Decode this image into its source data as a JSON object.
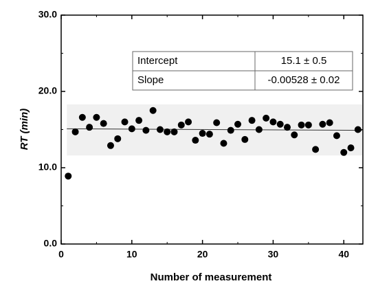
{
  "chart_data": {
    "type": "scatter",
    "xlabel": "Number of measurement",
    "ylabel": "RT (min)",
    "x": [
      1,
      2,
      3,
      4,
      5,
      6,
      7,
      8,
      9,
      10,
      11,
      12,
      13,
      14,
      15,
      16,
      17,
      18,
      19,
      20,
      21,
      22,
      23,
      24,
      25,
      26,
      27,
      28,
      29,
      30,
      31,
      32,
      33,
      34,
      35,
      36,
      37,
      38,
      39,
      40,
      41,
      42
    ],
    "series": [
      {
        "color": "#000000",
        "values": [
          8.9,
          14.7,
          16.6,
          15.3,
          16.6,
          15.8,
          12.9,
          13.8,
          16.0,
          15.1,
          16.2,
          14.9,
          17.5,
          15.0,
          14.7,
          14.7,
          15.6,
          16.0,
          13.6,
          14.5,
          14.4,
          15.9,
          13.2,
          14.9,
          15.7,
          13.7,
          16.2,
          15.0,
          16.5,
          16.0,
          15.7,
          15.3,
          14.3,
          15.6,
          15.6,
          12.4,
          15.7,
          15.9,
          14.2,
          12.0,
          12.6,
          15.0
        ]
      }
    ],
    "fit_line": {
      "x": [
        0.8,
        42.6
      ],
      "y": [
        15.1,
        14.9
      ],
      "color": "#333333"
    },
    "band": {
      "x": [
        0.8,
        42.6
      ],
      "lower": 11.6,
      "upper": 18.3,
      "color": "#f0f0f0"
    },
    "xlim": [
      0,
      42.7
    ],
    "ylim": [
      0,
      30
    ],
    "xticks": [
      0,
      10,
      20,
      30,
      40
    ],
    "yticks": [
      {
        "value": 0,
        "label": "0.0"
      },
      {
        "value": 10,
        "label": "10.0"
      },
      {
        "value": 20,
        "label": "20.0"
      },
      {
        "value": 30,
        "label": "30.0"
      }
    ],
    "xminor": [
      5,
      15,
      25,
      35
    ],
    "yminor": [
      5,
      15,
      25
    ],
    "table": {
      "rows": [
        [
          "Intercept",
          "15.1 ± 0.5"
        ],
        [
          "Slope",
          "-0.00528 ± 0.02"
        ]
      ]
    }
  }
}
